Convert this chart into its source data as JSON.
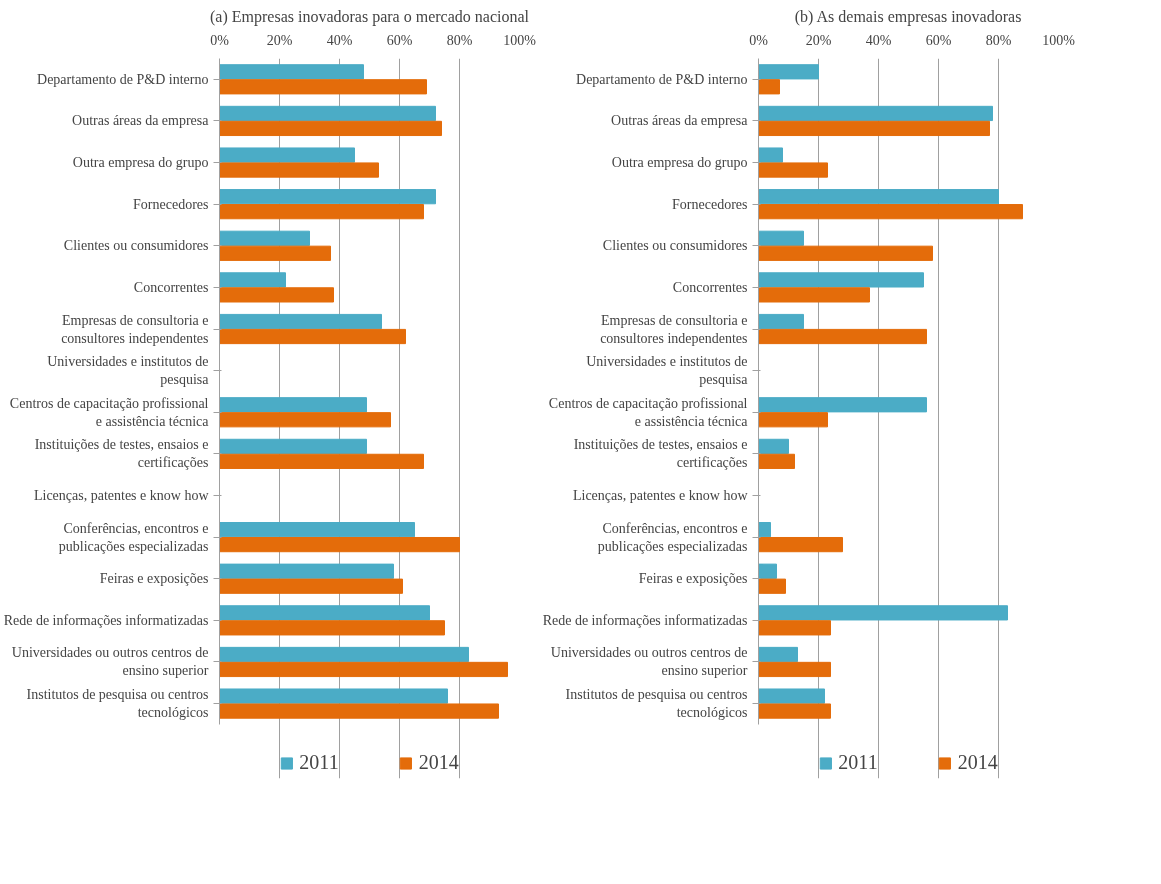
{
  "chart_data": [
    {
      "type": "bar",
      "orientation": "horizontal",
      "title": "(a) Empresas inovadoras para o mercado nacional",
      "categories": [
        "Departamento de P&D interno",
        "Outras áreas da empresa",
        "Outra empresa do grupo",
        "Fornecedores",
        "Clientes ou consumidores",
        "Concorrentes",
        "Empresas de consultoria e consultores independentes",
        "Universidades e institutos de pesquisa",
        "Centros de capacitação profissional e assistência técnica",
        "Instituições de testes, ensaios e certificações",
        "Licenças, patentes e know how",
        "Conferências, encontros e publicações especializadas",
        "Feiras e exposições",
        "Rede de informações informatizadas",
        "Universidades ou outros centros de ensino superior",
        "Institutos de pesquisa ou centros tecnológicos"
      ],
      "series": [
        {
          "name": "2011",
          "color": "#4bacc6",
          "values": [
            48,
            72,
            45,
            72,
            30,
            22,
            54,
            null,
            49,
            49,
            null,
            65,
            58,
            70,
            83,
            76
          ]
        },
        {
          "name": "2014",
          "color": "#e46c0a",
          "values": [
            69,
            74,
            53,
            68,
            37,
            38,
            62,
            null,
            57,
            68,
            null,
            80,
            61,
            75,
            96,
            93
          ]
        }
      ],
      "xlim": [
        0,
        100
      ],
      "xticks": [
        {
          "value": 0,
          "label": "0%"
        },
        {
          "value": 20,
          "label": "20%"
        },
        {
          "value": 40,
          "label": "40%"
        },
        {
          "value": 60,
          "label": "60%"
        },
        {
          "value": 80,
          "label": "80%"
        },
        {
          "value": 100,
          "label": "100%"
        }
      ],
      "grid": "x",
      "legend": "bottom"
    },
    {
      "type": "bar",
      "orientation": "horizontal",
      "title": "(b) As demais empresas inovadoras",
      "categories": [
        "Departamento de P&D interno",
        "Outras áreas da empresa",
        "Outra empresa do grupo",
        "Fornecedores",
        "Clientes ou consumidores",
        "Concorrentes",
        "Empresas de consultoria e consultores independentes",
        "Universidades e institutos de pesquisa",
        "Centros de capacitação profissional e assistência técnica",
        "Instituições de testes, ensaios e certificações",
        "Licenças, patentes e know how",
        "Conferências, encontros e publicações especializadas",
        "Feiras e exposições",
        "Rede de informações informatizadas",
        "Universidades ou outros centros de ensino superior",
        "Institutos de pesquisa ou centros tecnológicos"
      ],
      "series": [
        {
          "name": "2011",
          "color": "#4bacc6",
          "values": [
            20,
            78,
            8,
            80,
            15,
            55,
            15,
            null,
            56,
            10,
            null,
            4,
            6,
            83,
            13,
            22
          ]
        },
        {
          "name": "2014",
          "color": "#e46c0a",
          "values": [
            7,
            77,
            23,
            88,
            58,
            37,
            56,
            null,
            23,
            12,
            null,
            28,
            9,
            24,
            24,
            24
          ]
        }
      ],
      "xlim": [
        0,
        100
      ],
      "xticks": [
        {
          "value": 0,
          "label": "0%"
        },
        {
          "value": 20,
          "label": "20%"
        },
        {
          "value": 40,
          "label": "40%"
        },
        {
          "value": 60,
          "label": "60%"
        },
        {
          "value": 80,
          "label": "80%"
        },
        {
          "value": 100,
          "label": "100%"
        }
      ],
      "grid": "x",
      "legend": "bottom"
    }
  ]
}
